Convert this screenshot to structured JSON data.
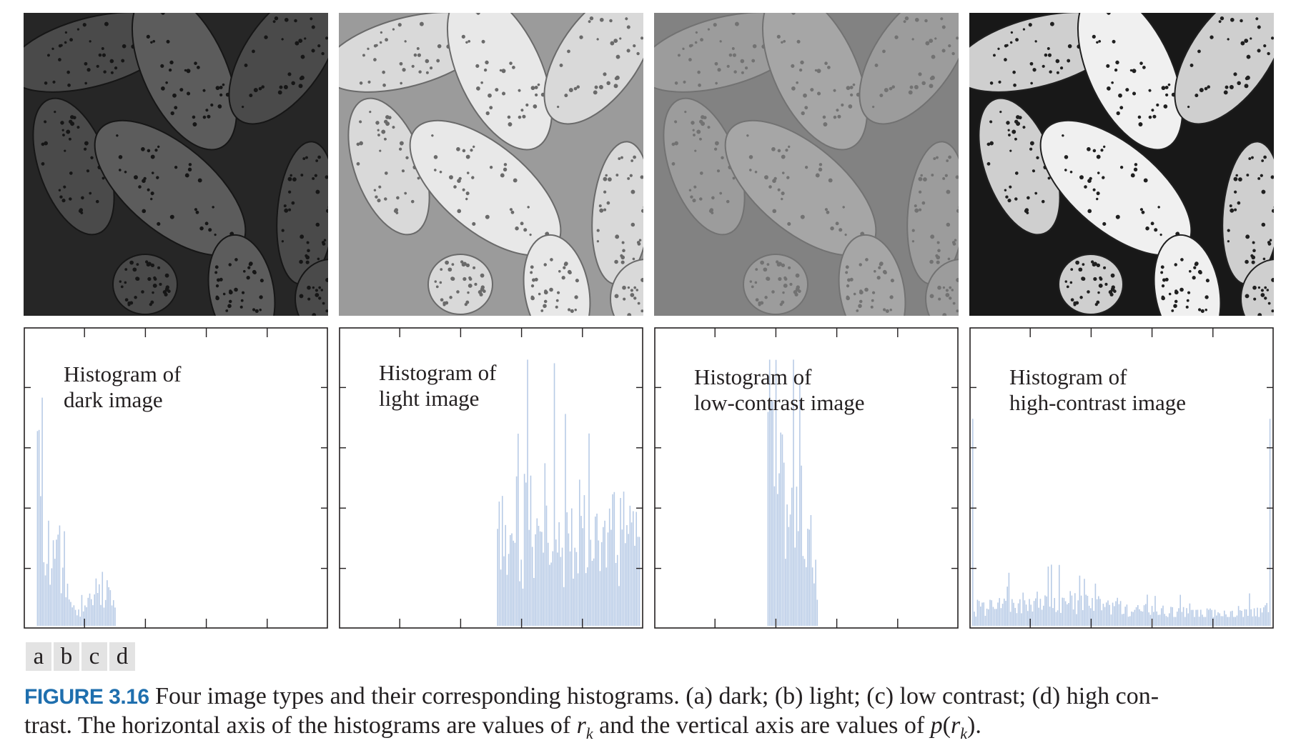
{
  "panels": [
    {
      "id": "a",
      "histogram_label_line1": "Histogram of",
      "histogram_label_line2": "dark image",
      "image_tone": {
        "bg": "#262626",
        "grain": "#4a4a4a",
        "dots": "#161616",
        "bright_grain": "#5c5c5c"
      },
      "histogram": {
        "bins_start": 0.035,
        "bins_end": 0.3,
        "profile": "dark"
      }
    },
    {
      "id": "b",
      "histogram_label_line1": "Histogram of",
      "histogram_label_line2": "light image",
      "image_tone": {
        "bg": "#9b9b9b",
        "grain": "#d9d9d9",
        "dots": "#6a6a6a",
        "bright_grain": "#e8e8e8"
      },
      "histogram": {
        "bins_start": 0.52,
        "bins_end": 1.0,
        "profile": "light"
      }
    },
    {
      "id": "c",
      "histogram_label_line1": "Histogram of",
      "histogram_label_line2": "low-contrast image",
      "image_tone": {
        "bg": "#828282",
        "grain": "#9c9c9c",
        "dots": "#727272",
        "bright_grain": "#a6a6a6"
      },
      "histogram": {
        "bins_start": 0.37,
        "bins_end": 0.54,
        "profile": "low"
      }
    },
    {
      "id": "d",
      "histogram_label_line1": "Histogram of",
      "histogram_label_line2": "high-contrast image",
      "image_tone": {
        "bg": "#181818",
        "grain": "#cfcfcf",
        "dots": "#202020",
        "bright_grain": "#f0f0f0"
      },
      "histogram": {
        "bins_start": 0.0,
        "bins_end": 1.0,
        "profile": "high"
      }
    }
  ],
  "subfigure_letters": [
    "a",
    "b",
    "c",
    "d"
  ],
  "caption": {
    "label": "FIGURE 3.16",
    "text_part1": " Four image types and their corresponding histograms. (a) dark; (b) light; (c) low contrast; (d) high con-",
    "text_part2": "trast. The horizontal axis of the histograms are values of ",
    "var_r": "r",
    "var_k": "k",
    "text_part3": " and the vertical axis are values of ",
    "var_p": "p",
    "paren_open": "(",
    "paren_close": ")."
  },
  "colors": {
    "histogram_bar": "#b8cbe6",
    "axis": "#231f20",
    "caption_label": "#1f6fae"
  }
}
